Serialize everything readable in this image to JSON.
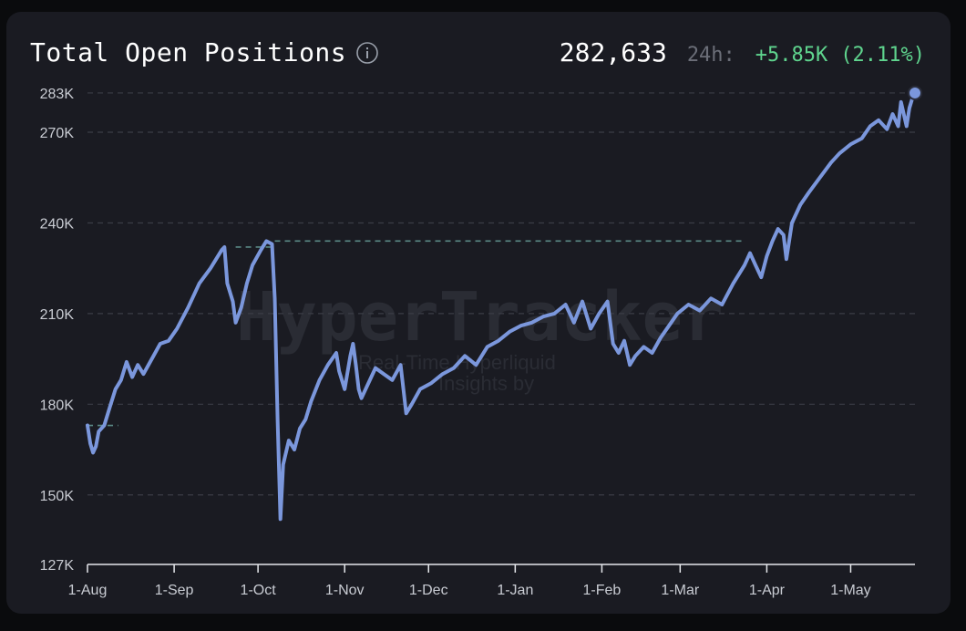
{
  "header": {
    "title": "Total Open Positions",
    "info_icon": "info-circle-icon",
    "total": "282,633",
    "period_label": "24h:",
    "change_abs": "+5.85K",
    "change_pct": "(2.11%)"
  },
  "watermark": {
    "brand": "HyperTracker",
    "tagline_1": "Real-Time Hyperliquid",
    "tagline_2": "Insights by"
  },
  "colors": {
    "line": "#7b97dc",
    "grid": "#3a3d46",
    "ath_line": "#5b8a86",
    "positive": "#5fd48e",
    "card": "#1a1b22"
  },
  "chart_data": {
    "type": "line",
    "title": "Total Open Positions",
    "xlabel": "",
    "ylabel": "",
    "ylim": [
      127000,
      286000
    ],
    "y_ticks": [
      {
        "value": 283000,
        "label": "283K"
      },
      {
        "value": 270000,
        "label": "270K"
      },
      {
        "value": 240000,
        "label": "240K"
      },
      {
        "value": 210000,
        "label": "210K"
      },
      {
        "value": 180000,
        "label": "180K"
      },
      {
        "value": 150000,
        "label": "150K"
      },
      {
        "value": 127000,
        "label": "127K"
      }
    ],
    "x_ticks": [
      "1-Aug",
      "1-Sep",
      "1-Oct",
      "1-Nov",
      "1-Dec",
      "1-Jan",
      "1-Feb",
      "1-Mar",
      "1-Apr",
      "1-May"
    ],
    "x_range": [
      "2024-08-01",
      "2025-05-24"
    ],
    "grid": true,
    "reference_lines": [
      {
        "from": "2024-08-01",
        "to": "2024-08-12",
        "value": 173000
      },
      {
        "from": "2024-09-23",
        "to": "2024-10-07",
        "value": 232000
      },
      {
        "from": "2024-10-07",
        "to": "2025-03-24",
        "value": 234000
      }
    ],
    "series": [
      {
        "values": [
          [
            "2024-08-01",
            173000
          ],
          [
            "2024-08-02",
            167000
          ],
          [
            "2024-08-03",
            164000
          ],
          [
            "2024-08-04",
            166000
          ],
          [
            "2024-08-05",
            171000
          ],
          [
            "2024-08-07",
            173000
          ],
          [
            "2024-08-09",
            179000
          ],
          [
            "2024-08-11",
            185000
          ],
          [
            "2024-08-13",
            188000
          ],
          [
            "2024-08-15",
            194000
          ],
          [
            "2024-08-17",
            189000
          ],
          [
            "2024-08-19",
            193000
          ],
          [
            "2024-08-21",
            190000
          ],
          [
            "2024-08-24",
            195000
          ],
          [
            "2024-08-27",
            200000
          ],
          [
            "2024-08-30",
            201000
          ],
          [
            "2024-09-02",
            205000
          ],
          [
            "2024-09-06",
            212000
          ],
          [
            "2024-09-10",
            220000
          ],
          [
            "2024-09-14",
            225000
          ],
          [
            "2024-09-18",
            231000
          ],
          [
            "2024-09-19",
            232000
          ],
          [
            "2024-09-20",
            220000
          ],
          [
            "2024-09-22",
            214000
          ],
          [
            "2024-09-23",
            207000
          ],
          [
            "2024-09-25",
            212000
          ],
          [
            "2024-09-27",
            220000
          ],
          [
            "2024-09-29",
            226000
          ],
          [
            "2024-10-02",
            231000
          ],
          [
            "2024-10-04",
            234000
          ],
          [
            "2024-10-06",
            233000
          ],
          [
            "2024-10-07",
            215000
          ],
          [
            "2024-10-08",
            175000
          ],
          [
            "2024-10-09",
            142000
          ],
          [
            "2024-10-10",
            160000
          ],
          [
            "2024-10-12",
            168000
          ],
          [
            "2024-10-14",
            165000
          ],
          [
            "2024-10-16",
            172000
          ],
          [
            "2024-10-18",
            175000
          ],
          [
            "2024-10-20",
            181000
          ],
          [
            "2024-10-23",
            188000
          ],
          [
            "2024-10-26",
            193000
          ],
          [
            "2024-10-29",
            197000
          ],
          [
            "2024-10-30",
            191000
          ],
          [
            "2024-11-01",
            185000
          ],
          [
            "2024-11-03",
            196000
          ],
          [
            "2024-11-04",
            200000
          ],
          [
            "2024-11-05",
            193000
          ],
          [
            "2024-11-06",
            185000
          ],
          [
            "2024-11-07",
            182000
          ],
          [
            "2024-11-09",
            186000
          ],
          [
            "2024-11-12",
            192000
          ],
          [
            "2024-11-15",
            190000
          ],
          [
            "2024-11-18",
            188000
          ],
          [
            "2024-11-21",
            193000
          ],
          [
            "2024-11-23",
            177000
          ],
          [
            "2024-11-25",
            180000
          ],
          [
            "2024-11-28",
            185000
          ],
          [
            "2024-12-02",
            187000
          ],
          [
            "2024-12-06",
            190000
          ],
          [
            "2024-12-10",
            192000
          ],
          [
            "2024-12-14",
            196000
          ],
          [
            "2024-12-18",
            193000
          ],
          [
            "2024-12-22",
            199000
          ],
          [
            "2024-12-26",
            201000
          ],
          [
            "2024-12-30",
            204000
          ],
          [
            "2025-01-03",
            206000
          ],
          [
            "2025-01-07",
            207000
          ],
          [
            "2025-01-11",
            209000
          ],
          [
            "2025-01-15",
            210000
          ],
          [
            "2025-01-19",
            213000
          ],
          [
            "2025-01-22",
            207000
          ],
          [
            "2025-01-25",
            214000
          ],
          [
            "2025-01-28",
            205000
          ],
          [
            "2025-01-31",
            210000
          ],
          [
            "2025-02-03",
            214000
          ],
          [
            "2025-02-05",
            200000
          ],
          [
            "2025-02-07",
            197000
          ],
          [
            "2025-02-09",
            201000
          ],
          [
            "2025-02-11",
            193000
          ],
          [
            "2025-02-13",
            196000
          ],
          [
            "2025-02-16",
            199000
          ],
          [
            "2025-02-19",
            197000
          ],
          [
            "2025-02-22",
            202000
          ],
          [
            "2025-02-25",
            206000
          ],
          [
            "2025-02-28",
            210000
          ],
          [
            "2025-03-04",
            213000
          ],
          [
            "2025-03-08",
            211000
          ],
          [
            "2025-03-12",
            215000
          ],
          [
            "2025-03-16",
            213000
          ],
          [
            "2025-03-20",
            220000
          ],
          [
            "2025-03-24",
            226000
          ],
          [
            "2025-03-26",
            230000
          ],
          [
            "2025-03-28",
            226000
          ],
          [
            "2025-03-30",
            222000
          ],
          [
            "2025-04-01",
            229000
          ],
          [
            "2025-04-03",
            234000
          ],
          [
            "2025-04-05",
            238000
          ],
          [
            "2025-04-07",
            236000
          ],
          [
            "2025-04-08",
            228000
          ],
          [
            "2025-04-10",
            240000
          ],
          [
            "2025-04-13",
            246000
          ],
          [
            "2025-04-16",
            250000
          ],
          [
            "2025-04-20",
            255000
          ],
          [
            "2025-04-24",
            260000
          ],
          [
            "2025-04-27",
            263000
          ],
          [
            "2025-05-01",
            266000
          ],
          [
            "2025-05-05",
            268000
          ],
          [
            "2025-05-08",
            272000
          ],
          [
            "2025-05-11",
            274000
          ],
          [
            "2025-05-14",
            271000
          ],
          [
            "2025-05-16",
            276000
          ],
          [
            "2025-05-18",
            272000
          ],
          [
            "2025-05-19",
            280000
          ],
          [
            "2025-05-20",
            276000
          ],
          [
            "2025-05-21",
            272000
          ],
          [
            "2025-05-22",
            278000
          ],
          [
            "2025-05-23",
            281000
          ],
          [
            "2025-05-24",
            283000
          ]
        ]
      }
    ]
  }
}
